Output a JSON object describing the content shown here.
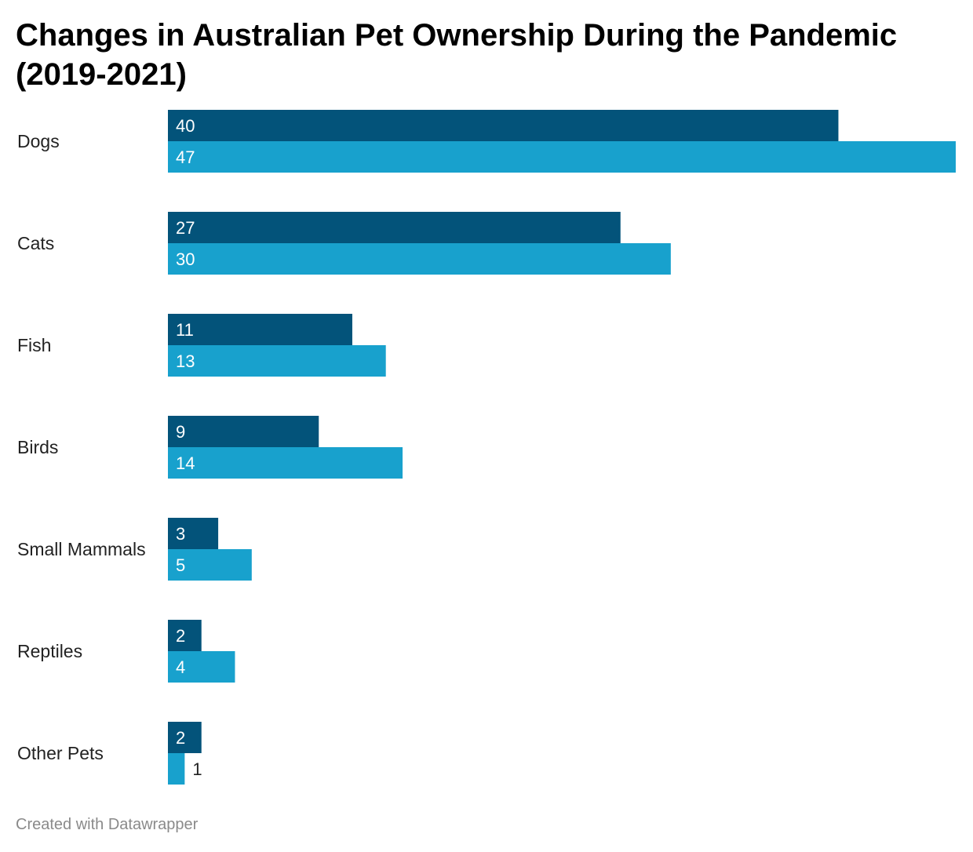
{
  "chart_data": {
    "type": "bar",
    "orientation": "horizontal",
    "title": "Changes in Australian Pet Ownership During the Pandemic (2019-2021)",
    "categories": [
      "Dogs",
      "Cats",
      "Fish",
      "Birds",
      "Small Mammals",
      "Reptiles",
      "Other Pets"
    ],
    "series": [
      {
        "values": [
          40,
          27,
          11,
          9,
          3,
          2,
          2
        ],
        "color": "#03537a"
      },
      {
        "values": [
          47,
          30,
          13,
          14,
          5,
          4,
          1
        ],
        "color": "#18a1cd"
      }
    ],
    "xlim": [
      0,
      47
    ],
    "grid": false,
    "legend": "none"
  },
  "footer": "Created with Datawrapper"
}
